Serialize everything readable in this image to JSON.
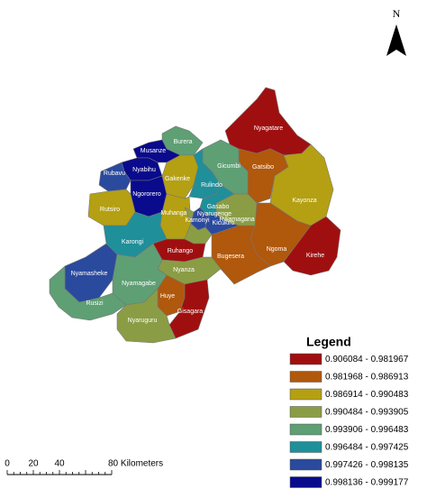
{
  "north_label": "N",
  "legend": {
    "title": "Legend",
    "items": [
      {
        "label": "0.906084 - 0.981967",
        "color": "#a00f0f"
      },
      {
        "label": "0.981968 - 0.986913",
        "color": "#b0580c"
      },
      {
        "label": "0.986914 - 0.990483",
        "color": "#b4a012"
      },
      {
        "label": "0.990484 - 0.993905",
        "color": "#8a9d45"
      },
      {
        "label": "0.993906 - 0.996483",
        "color": "#5e9f74"
      },
      {
        "label": "0.996484 - 0.997425",
        "color": "#1f8f9a"
      },
      {
        "label": "0.997426 - 0.998135",
        "color": "#2a4a9e"
      },
      {
        "label": "0.998136 - 0.999177",
        "color": "#0a0a8c"
      }
    ]
  },
  "districts": [
    {
      "name": "Nyagatare",
      "class": 0
    },
    {
      "name": "Gatsibo",
      "class": 1
    },
    {
      "name": "Kayonza",
      "class": 2
    },
    {
      "name": "Kirehe",
      "class": 0
    },
    {
      "name": "Ngoma",
      "class": 1
    },
    {
      "name": "Bugesera",
      "class": 1
    },
    {
      "name": "Rwamagana",
      "class": 3
    },
    {
      "name": "Gicumbi",
      "class": 4
    },
    {
      "name": "Burera",
      "class": 4
    },
    {
      "name": "Musanze",
      "class": 7
    },
    {
      "name": "Nyabihu",
      "class": 7
    },
    {
      "name": "Rubavu",
      "class": 6
    },
    {
      "name": "Ngororero",
      "class": 7
    },
    {
      "name": "Gakenke",
      "class": 2
    },
    {
      "name": "Rulindo",
      "class": 5
    },
    {
      "name": "Gasabo",
      "class": 5
    },
    {
      "name": "Kicukiro",
      "class": 6
    },
    {
      "name": "Nyarugenge",
      "class": 6
    },
    {
      "name": "Muhanga",
      "class": 2
    },
    {
      "name": "Kamonyi",
      "class": 3
    },
    {
      "name": "Rutsiro",
      "class": 2
    },
    {
      "name": "Karongi",
      "class": 5
    },
    {
      "name": "Ruhango",
      "class": 0
    },
    {
      "name": "Nyanza",
      "class": 3
    },
    {
      "name": "Nyamasheke",
      "class": 6
    },
    {
      "name": "Nyamagabe",
      "class": 4
    },
    {
      "name": "Rusizi",
      "class": 4
    },
    {
      "name": "Huye",
      "class": 1
    },
    {
      "name": "Gisagara",
      "class": 0
    },
    {
      "name": "Nyaruguru",
      "class": 3
    }
  ],
  "scale_bar": {
    "labels": [
      "0",
      "20",
      "40",
      "80 Kilometers"
    ]
  }
}
